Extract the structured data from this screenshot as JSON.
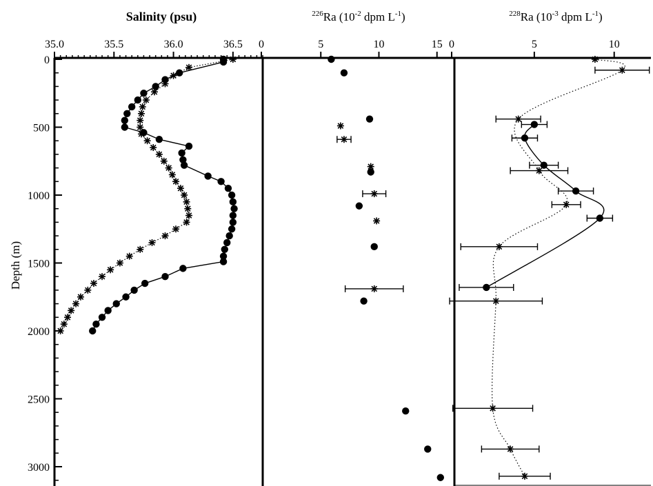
{
  "chart_data": [
    {
      "type": "line",
      "title": "Salinity (psu)",
      "ylabel": "Depth (m)",
      "xlim": [
        35.0,
        36.75
      ],
      "ylim": [
        3150,
        0
      ],
      "x_ticks": [
        "35.0",
        "35.5",
        "36.0",
        "36.5"
      ],
      "y_ticks": [
        "0",
        "500",
        "1000",
        "1500",
        "2000",
        "2500",
        "3000"
      ],
      "series": [
        {
          "marker": "circle",
          "line": "solid",
          "points": [
            {
              "x": 36.42,
              "y": 0
            },
            {
              "x": 36.42,
              "y": 20
            },
            {
              "x": 36.05,
              "y": 100
            },
            {
              "x": 35.93,
              "y": 150
            },
            {
              "x": 35.85,
              "y": 200
            },
            {
              "x": 35.75,
              "y": 250
            },
            {
              "x": 35.7,
              "y": 300
            },
            {
              "x": 35.65,
              "y": 350
            },
            {
              "x": 35.61,
              "y": 400
            },
            {
              "x": 35.59,
              "y": 450
            },
            {
              "x": 35.59,
              "y": 500
            },
            {
              "x": 35.75,
              "y": 540
            },
            {
              "x": 35.88,
              "y": 590
            },
            {
              "x": 36.13,
              "y": 640
            },
            {
              "x": 36.07,
              "y": 690
            },
            {
              "x": 36.08,
              "y": 740
            },
            {
              "x": 36.09,
              "y": 780
            },
            {
              "x": 36.29,
              "y": 860
            },
            {
              "x": 36.4,
              "y": 900
            },
            {
              "x": 36.46,
              "y": 950
            },
            {
              "x": 36.49,
              "y": 1000
            },
            {
              "x": 36.5,
              "y": 1050
            },
            {
              "x": 36.51,
              "y": 1100
            },
            {
              "x": 36.5,
              "y": 1150
            },
            {
              "x": 36.5,
              "y": 1200
            },
            {
              "x": 36.49,
              "y": 1250
            },
            {
              "x": 36.47,
              "y": 1300
            },
            {
              "x": 36.45,
              "y": 1350
            },
            {
              "x": 36.43,
              "y": 1400
            },
            {
              "x": 36.42,
              "y": 1450
            },
            {
              "x": 36.42,
              "y": 1490
            },
            {
              "x": 36.08,
              "y": 1540
            },
            {
              "x": 35.93,
              "y": 1600
            },
            {
              "x": 35.76,
              "y": 1650
            },
            {
              "x": 35.67,
              "y": 1700
            },
            {
              "x": 35.6,
              "y": 1750
            },
            {
              "x": 35.52,
              "y": 1800
            },
            {
              "x": 35.45,
              "y": 1850
            },
            {
              "x": 35.4,
              "y": 1900
            },
            {
              "x": 35.35,
              "y": 1950
            },
            {
              "x": 35.32,
              "y": 2000
            }
          ]
        },
        {
          "marker": "asterisk",
          "line": "dotted",
          "points": [
            {
              "x": 36.5,
              "y": 0
            },
            {
              "x": 36.13,
              "y": 60
            },
            {
              "x": 36.0,
              "y": 120
            },
            {
              "x": 35.93,
              "y": 180
            },
            {
              "x": 35.84,
              "y": 240
            },
            {
              "x": 35.77,
              "y": 300
            },
            {
              "x": 35.74,
              "y": 350
            },
            {
              "x": 35.73,
              "y": 400
            },
            {
              "x": 35.72,
              "y": 450
            },
            {
              "x": 35.72,
              "y": 500
            },
            {
              "x": 35.73,
              "y": 550
            },
            {
              "x": 35.78,
              "y": 600
            },
            {
              "x": 35.83,
              "y": 650
            },
            {
              "x": 35.88,
              "y": 700
            },
            {
              "x": 35.92,
              "y": 750
            },
            {
              "x": 35.96,
              "y": 800
            },
            {
              "x": 35.99,
              "y": 850
            },
            {
              "x": 36.02,
              "y": 900
            },
            {
              "x": 36.06,
              "y": 950
            },
            {
              "x": 36.09,
              "y": 1000
            },
            {
              "x": 36.11,
              "y": 1050
            },
            {
              "x": 36.12,
              "y": 1100
            },
            {
              "x": 36.13,
              "y": 1150
            },
            {
              "x": 36.11,
              "y": 1200
            },
            {
              "x": 36.02,
              "y": 1250
            },
            {
              "x": 35.93,
              "y": 1300
            },
            {
              "x": 35.82,
              "y": 1350
            },
            {
              "x": 35.72,
              "y": 1400
            },
            {
              "x": 35.63,
              "y": 1450
            },
            {
              "x": 35.55,
              "y": 1500
            },
            {
              "x": 35.47,
              "y": 1550
            },
            {
              "x": 35.4,
              "y": 1600
            },
            {
              "x": 35.33,
              "y": 1650
            },
            {
              "x": 35.28,
              "y": 1700
            },
            {
              "x": 35.22,
              "y": 1750
            },
            {
              "x": 35.18,
              "y": 1800
            },
            {
              "x": 35.14,
              "y": 1850
            },
            {
              "x": 35.11,
              "y": 1900
            },
            {
              "x": 35.08,
              "y": 1950
            },
            {
              "x": 35.05,
              "y": 2000
            }
          ]
        }
      ]
    },
    {
      "type": "scatter",
      "title_main": "Ra (10",
      "title_exp": "-2",
      "title_unit": " dpm L",
      "title_unit_exp": "-1",
      "title_close": ")",
      "title_iso": "226",
      "xlim": [
        0,
        16.5
      ],
      "ylim": [
        3150,
        0
      ],
      "x_ticks": [
        "0",
        "5",
        "10",
        "15"
      ],
      "series": [
        {
          "marker": "circle",
          "points": [
            {
              "x": 5.9,
              "y": 0
            },
            {
              "x": 7.0,
              "y": 100
            },
            {
              "x": 9.2,
              "y": 440
            },
            {
              "x": 9.3,
              "y": 830
            },
            {
              "x": 8.3,
              "y": 1080
            },
            {
              "x": 9.6,
              "y": 1380
            },
            {
              "x": 8.7,
              "y": 1780
            },
            {
              "x": 12.3,
              "y": 2590
            },
            {
              "x": 14.2,
              "y": 2870
            },
            {
              "x": 15.3,
              "y": 3080
            }
          ]
        },
        {
          "marker": "asterisk",
          "points": [
            {
              "x": 6.7,
              "y": 490,
              "err": 0
            },
            {
              "x": 7.0,
              "y": 590,
              "err": 0.6
            },
            {
              "x": 9.3,
              "y": 790,
              "err": 0
            },
            {
              "x": 9.6,
              "y": 990,
              "err": 1.0
            },
            {
              "x": 9.8,
              "y": 1190,
              "err": 0
            },
            {
              "x": 9.6,
              "y": 1690,
              "err": 2.5
            }
          ]
        }
      ]
    },
    {
      "type": "scatter",
      "title_main": "Ra (10",
      "title_exp": "-3",
      "title_unit": " dpm L",
      "title_unit_exp": "-1",
      "title_close": ")",
      "title_iso": "228",
      "xlim": [
        0,
        12.3
      ],
      "ylim": [
        3150,
        0
      ],
      "x_ticks": [
        "0",
        "5",
        "10"
      ],
      "series": [
        {
          "marker": "circle",
          "line": "solid",
          "points": [
            {
              "x": 5.0,
              "y": 480,
              "err": 0.8
            },
            {
              "x": 4.4,
              "y": 580,
              "err": 0.8
            },
            {
              "x": 5.6,
              "y": 780,
              "err": 0.9
            },
            {
              "x": 7.6,
              "y": 970,
              "err": 1.1
            },
            {
              "x": 9.1,
              "y": 1170,
              "err": 0.8
            },
            {
              "x": 2.0,
              "y": 1680,
              "err": 1.7
            }
          ]
        },
        {
          "marker": "asterisk",
          "line": "dotted",
          "points": [
            {
              "x": 8.8,
              "y": 0,
              "err": 0
            },
            {
              "x": 10.5,
              "y": 80,
              "err": 1.7
            },
            {
              "x": 4.0,
              "y": 440,
              "err": 1.4
            },
            {
              "x": 5.3,
              "y": 820,
              "err": 1.8
            },
            {
              "x": 7.0,
              "y": 1070,
              "err": 0.9
            },
            {
              "x": 2.8,
              "y": 1380,
              "err": 2.4
            },
            {
              "x": 2.6,
              "y": 1780,
              "err": 2.9
            },
            {
              "x": 2.4,
              "y": 2570,
              "err": 2.5
            },
            {
              "x": 3.5,
              "y": 2870,
              "err": 1.8
            },
            {
              "x": 4.4,
              "y": 3070,
              "err": 1.6
            }
          ]
        }
      ]
    }
  ]
}
